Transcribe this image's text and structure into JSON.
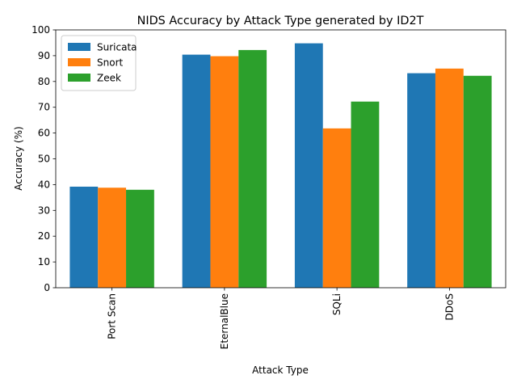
{
  "chart_data": {
    "type": "bar",
    "title": "NIDS Accuracy by Attack Type generated by ID2T",
    "xlabel": "Attack Type",
    "ylabel": "Accuracy (%)",
    "categories": [
      "Port Scan",
      "EternalBlue",
      "SQLi",
      "DDoS"
    ],
    "series": [
      {
        "name": "Suricata",
        "color": "#1f77b4",
        "values": [
          39.2,
          90.4,
          94.8,
          83.2
        ]
      },
      {
        "name": "Snort",
        "color": "#ff7f0e",
        "values": [
          38.8,
          89.8,
          61.8,
          85.0
        ]
      },
      {
        "name": "Zeek",
        "color": "#2ca02c",
        "values": [
          38.0,
          92.2,
          72.2,
          82.2
        ]
      }
    ],
    "ylim": [
      0,
      100
    ],
    "yticks": [
      0,
      10,
      20,
      30,
      40,
      50,
      60,
      70,
      80,
      90,
      100
    ],
    "xtick_rotation": "vertical",
    "grid": false,
    "legend_position": "top-left"
  }
}
